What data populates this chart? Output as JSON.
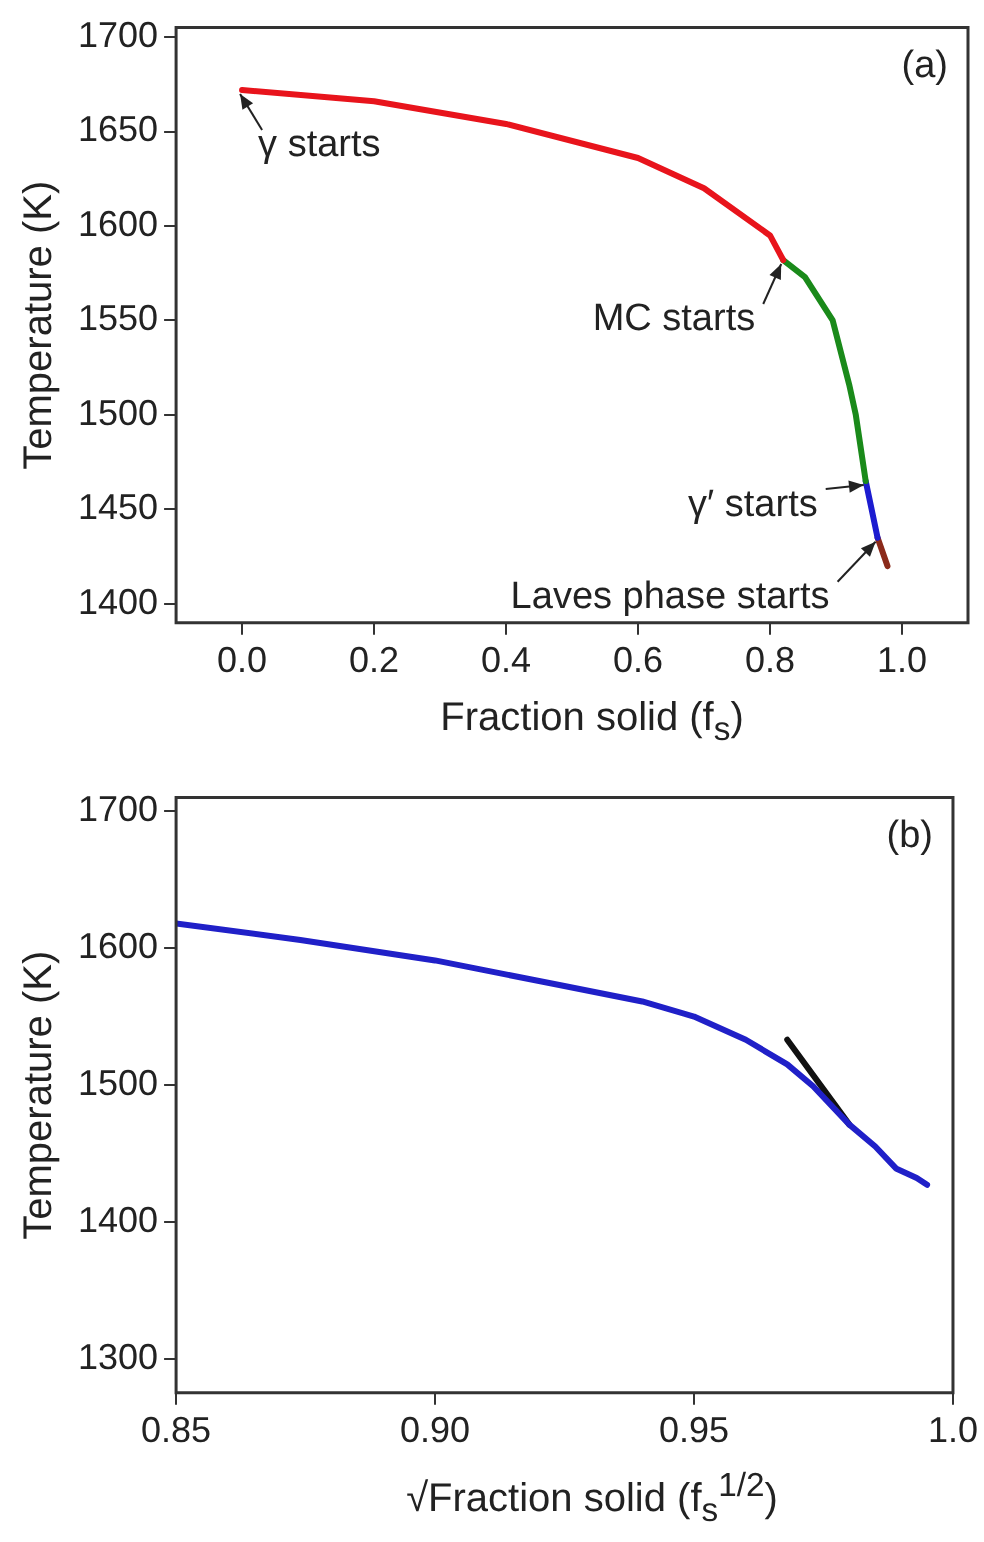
{
  "chart_data": [
    {
      "type": "line",
      "xlabel": "Fraction solid (f$_{s}$)",
      "ylabel": "Temperature (K)",
      "xlim": [
        -0.1,
        1.1
      ],
      "ylim": [
        1390,
        1705
      ],
      "xticks": [
        {
          "value": 0,
          "label": "0.0"
        },
        0.2,
        0.4,
        0.6,
        0.8,
        {
          "value": 1,
          "label": "1.0"
        }
      ],
      "yticks": [
        1400,
        1450,
        1500,
        1550,
        1600,
        1650,
        1700
      ],
      "grid": false,
      "legend": false,
      "marker": "none",
      "line_style": "solid",
      "annotations": [
        "(a)",
        {
          "text": "γ starts",
          "x": 0,
          "y": 1672
        },
        {
          "text": "MC starts",
          "x": 0.82,
          "y": 1582
        },
        {
          "text": "γ′ starts",
          "x": 0.945,
          "y": 1465
        },
        {
          "text": "Laves phase starts",
          "x": 0.963,
          "y": 1435
        }
      ],
      "series": [
        {
          "color": "#e8141c",
          "x": [
            0,
            0.2,
            0.4,
            0.6,
            0.7,
            0.8,
            0.82
          ],
          "values": [
            1672,
            1666,
            1654,
            1636,
            1620,
            1595,
            1582
          ]
        },
        {
          "color": "#1a8a1a",
          "x": [
            0.82,
            0.853,
            0.895,
            0.92,
            0.93,
            0.945
          ],
          "values": [
            1582,
            1573,
            1550,
            1516,
            1500,
            1465
          ]
        },
        {
          "color": "#1c1cd0",
          "x": [
            0.945,
            0.963
          ],
          "values": [
            1465,
            1435
          ]
        },
        {
          "color": "#8b2a1a",
          "x": [
            0.963,
            0.978
          ],
          "values": [
            1435,
            1420
          ]
        }
      ]
    },
    {
      "type": "line",
      "xlabel": "√Fraction solid (f$_{s}$$^{1/2}$)",
      "ylabel": "Temperature (K)",
      "xlim": [
        0.85,
        1.0
      ],
      "ylim": [
        1275,
        1710
      ],
      "xticks": [
        0.85,
        {
          "value": 0.9,
          "label": "0.90"
        },
        0.95,
        {
          "value": 1,
          "label": "1.0"
        }
      ],
      "yticks": [
        1300,
        1400,
        1500,
        1600,
        1700
      ],
      "grid": false,
      "legend": false,
      "marker": "none",
      "line_style": "solid",
      "annotations": [
        "(b)"
      ],
      "series": [
        {
          "color": "#2020c8",
          "x": [
            0.85,
            0.874,
            0.9,
            0.924,
            0.94,
            0.95,
            0.96,
            0.968,
            0.973,
            0.98,
            0.985,
            0.989,
            0.993,
            0.995
          ],
          "values": [
            1618,
            1606,
            1591,
            1573,
            1561,
            1550,
            1533,
            1515,
            1499,
            1471,
            1455,
            1439,
            1432,
            1427
          ]
        },
        {
          "color": "#111111",
          "x": [
            0.968,
            0.98
          ],
          "values": [
            1533,
            1471
          ]
        }
      ]
    }
  ]
}
